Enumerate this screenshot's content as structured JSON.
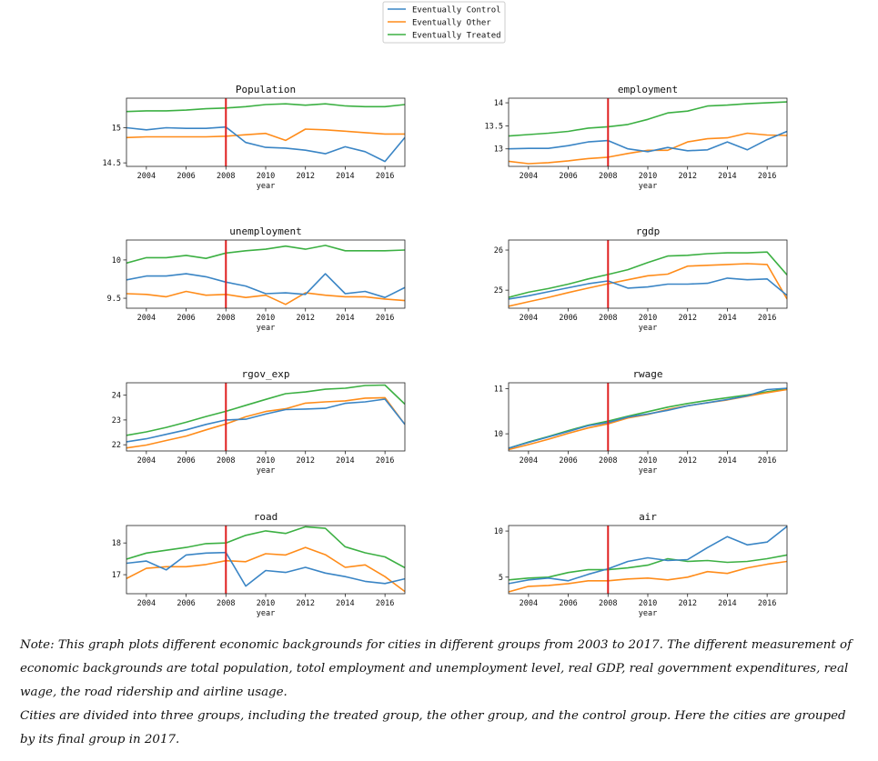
{
  "legend": {
    "items": [
      {
        "name": "Eventually Control",
        "color": "#3a85c5"
      },
      {
        "name": "Eventually Other",
        "color": "#ff8c1a"
      },
      {
        "name": "Eventually Treated",
        "color": "#3cb043"
      }
    ]
  },
  "chart_data": [
    {
      "type": "line",
      "title": "Population",
      "xlabel": "year",
      "ylabel": "",
      "x": [
        2003,
        2004,
        2005,
        2006,
        2007,
        2008,
        2009,
        2010,
        2011,
        2012,
        2013,
        2014,
        2015,
        2016,
        2017
      ],
      "xlim": [
        2003,
        2017
      ],
      "ylim": [
        14.45,
        15.42
      ],
      "yticks": [
        14.5,
        15.0
      ],
      "xticks": [
        2004,
        2006,
        2008,
        2010,
        2012,
        2014,
        2016
      ],
      "vline": 2008,
      "series": [
        {
          "name": "Eventually Control",
          "values": [
            15.0,
            14.97,
            15.0,
            14.99,
            14.99,
            15.01,
            14.79,
            14.72,
            14.71,
            14.68,
            14.63,
            14.73,
            14.66,
            14.52,
            14.86
          ]
        },
        {
          "name": "Eventually Other",
          "values": [
            14.86,
            14.87,
            14.87,
            14.87,
            14.87,
            14.88,
            14.9,
            14.92,
            14.82,
            14.98,
            14.97,
            14.95,
            14.93,
            14.91,
            14.91
          ]
        },
        {
          "name": "Eventually Treated",
          "values": [
            15.23,
            15.24,
            15.24,
            15.25,
            15.27,
            15.28,
            15.3,
            15.33,
            15.34,
            15.32,
            15.34,
            15.31,
            15.3,
            15.3,
            15.33
          ]
        }
      ]
    },
    {
      "type": "line",
      "title": "employment",
      "xlabel": "year",
      "ylabel": "",
      "x": [
        2003,
        2004,
        2005,
        2006,
        2007,
        2008,
        2009,
        2010,
        2011,
        2012,
        2013,
        2014,
        2015,
        2016,
        2017
      ],
      "xlim": [
        2003,
        2017
      ],
      "ylim": [
        12.62,
        14.1
      ],
      "yticks": [
        13.0,
        13.5,
        14.0
      ],
      "xticks": [
        2004,
        2006,
        2008,
        2010,
        2012,
        2014,
        2016
      ],
      "vline": 2008,
      "series": [
        {
          "name": "Eventually Control",
          "values": [
            13.0,
            13.01,
            13.01,
            13.07,
            13.15,
            13.18,
            13.0,
            12.94,
            13.03,
            12.96,
            12.98,
            13.15,
            12.98,
            13.2,
            13.38
          ]
        },
        {
          "name": "Eventually Other",
          "values": [
            12.73,
            12.68,
            12.7,
            12.74,
            12.79,
            12.82,
            12.9,
            12.97,
            12.97,
            13.15,
            13.22,
            13.24,
            13.34,
            13.3,
            13.29
          ]
        },
        {
          "name": "Eventually Treated",
          "values": [
            13.28,
            13.31,
            13.34,
            13.38,
            13.45,
            13.48,
            13.53,
            13.64,
            13.78,
            13.82,
            13.93,
            13.95,
            13.98,
            14.0,
            14.02
          ]
        }
      ]
    },
    {
      "type": "line",
      "title": "unemployment",
      "xlabel": "year",
      "ylabel": "",
      "x": [
        2003,
        2004,
        2005,
        2006,
        2007,
        2008,
        2009,
        2010,
        2011,
        2012,
        2013,
        2014,
        2015,
        2016,
        2017
      ],
      "xlim": [
        2003,
        2017
      ],
      "ylim": [
        9.37,
        10.26
      ],
      "yticks": [
        9.5,
        10.0
      ],
      "xticks": [
        2004,
        2006,
        2008,
        2010,
        2012,
        2014,
        2016
      ],
      "vline": 2008,
      "series": [
        {
          "name": "Eventually Control",
          "values": [
            9.74,
            9.79,
            9.79,
            9.82,
            9.78,
            9.71,
            9.66,
            9.56,
            9.57,
            9.55,
            9.82,
            9.56,
            9.59,
            9.51,
            9.64
          ]
        },
        {
          "name": "Eventually Other",
          "values": [
            9.56,
            9.55,
            9.52,
            9.59,
            9.54,
            9.55,
            9.51,
            9.54,
            9.42,
            9.57,
            9.54,
            9.52,
            9.52,
            9.49,
            9.47
          ]
        },
        {
          "name": "Eventually Treated",
          "values": [
            9.96,
            10.03,
            10.03,
            10.06,
            10.02,
            10.09,
            10.12,
            10.14,
            10.18,
            10.14,
            10.19,
            10.12,
            10.12,
            10.12,
            10.13
          ]
        }
      ]
    },
    {
      "type": "line",
      "title": "rgdp",
      "xlabel": "year",
      "ylabel": "",
      "x": [
        2003,
        2004,
        2005,
        2006,
        2007,
        2008,
        2009,
        2010,
        2011,
        2012,
        2013,
        2014,
        2015,
        2016,
        2017
      ],
      "xlim": [
        2003,
        2017
      ],
      "ylim": [
        24.55,
        26.25
      ],
      "yticks": [
        25,
        26
      ],
      "xticks": [
        2004,
        2006,
        2008,
        2010,
        2012,
        2014,
        2016
      ],
      "vline": 2008,
      "series": [
        {
          "name": "Eventually Control",
          "values": [
            24.78,
            24.86,
            24.96,
            25.06,
            25.16,
            25.23,
            25.05,
            25.08,
            25.15,
            25.15,
            25.17,
            25.3,
            25.26,
            25.28,
            24.87
          ]
        },
        {
          "name": "Eventually Other",
          "values": [
            24.6,
            24.71,
            24.82,
            24.94,
            25.05,
            25.16,
            25.26,
            25.36,
            25.4,
            25.6,
            25.62,
            25.64,
            25.66,
            25.64,
            24.78
          ]
        },
        {
          "name": "Eventually Treated",
          "values": [
            24.82,
            24.95,
            25.04,
            25.15,
            25.28,
            25.39,
            25.51,
            25.69,
            25.85,
            25.87,
            25.91,
            25.93,
            25.93,
            25.95,
            25.38
          ]
        }
      ]
    },
    {
      "type": "line",
      "title": "rgov_exp",
      "xlabel": "year",
      "ylabel": "",
      "x": [
        2003,
        2004,
        2005,
        2006,
        2007,
        2008,
        2009,
        2010,
        2011,
        2012,
        2013,
        2014,
        2015,
        2016,
        2017
      ],
      "xlim": [
        2003,
        2017
      ],
      "ylim": [
        21.75,
        24.5
      ],
      "yticks": [
        22,
        23,
        24
      ],
      "xticks": [
        2004,
        2006,
        2008,
        2010,
        2012,
        2014,
        2016
      ],
      "vline": 2008,
      "series": [
        {
          "name": "Eventually Control",
          "values": [
            22.12,
            22.24,
            22.42,
            22.6,
            22.82,
            23.0,
            23.03,
            23.24,
            23.42,
            23.44,
            23.47,
            23.67,
            23.73,
            23.84,
            22.82
          ]
        },
        {
          "name": "Eventually Other",
          "values": [
            21.87,
            21.99,
            22.17,
            22.35,
            22.6,
            22.84,
            23.13,
            23.34,
            23.45,
            23.68,
            23.73,
            23.77,
            23.88,
            23.9,
            22.82
          ]
        },
        {
          "name": "Eventually Treated",
          "values": [
            22.38,
            22.52,
            22.7,
            22.91,
            23.14,
            23.35,
            23.59,
            23.83,
            24.06,
            24.13,
            24.24,
            24.28,
            24.39,
            24.41,
            23.64
          ]
        }
      ]
    },
    {
      "type": "line",
      "title": "rwage",
      "xlabel": "year",
      "ylabel": "",
      "x": [
        2003,
        2004,
        2005,
        2006,
        2007,
        2008,
        2009,
        2010,
        2011,
        2012,
        2013,
        2014,
        2015,
        2016,
        2017
      ],
      "xlim": [
        2003,
        2017
      ],
      "ylim": [
        9.62,
        11.13
      ],
      "yticks": [
        10,
        11
      ],
      "xticks": [
        2004,
        2006,
        2008,
        2010,
        2012,
        2014,
        2016
      ],
      "vline": 2008,
      "series": [
        {
          "name": "Eventually Control",
          "values": [
            9.68,
            9.81,
            9.93,
            10.05,
            10.18,
            10.25,
            10.37,
            10.44,
            10.52,
            10.62,
            10.69,
            10.76,
            10.84,
            10.98,
            11.01
          ]
        },
        {
          "name": "Eventually Other",
          "values": [
            9.65,
            9.76,
            9.88,
            10.01,
            10.13,
            10.22,
            10.35,
            10.43,
            10.54,
            10.62,
            10.69,
            10.75,
            10.83,
            10.91,
            10.98
          ]
        },
        {
          "name": "Eventually Treated",
          "values": [
            9.68,
            9.82,
            9.94,
            10.07,
            10.19,
            10.28,
            10.39,
            10.49,
            10.59,
            10.67,
            10.74,
            10.8,
            10.86,
            10.93,
            11.0
          ]
        }
      ]
    },
    {
      "type": "line",
      "title": "road",
      "xlabel": "year",
      "ylabel": "",
      "x": [
        2003,
        2004,
        2005,
        2006,
        2007,
        2008,
        2009,
        2010,
        2011,
        2012,
        2013,
        2014,
        2015,
        2016,
        2017
      ],
      "xlim": [
        2003,
        2017
      ],
      "ylim": [
        16.4,
        18.55
      ],
      "yticks": [
        17,
        18
      ],
      "xticks": [
        2004,
        2006,
        2008,
        2010,
        2012,
        2014,
        2016
      ],
      "vline": 2008,
      "series": [
        {
          "name": "Eventually Control",
          "values": [
            17.36,
            17.43,
            17.15,
            17.62,
            17.68,
            17.7,
            16.64,
            17.13,
            17.07,
            17.23,
            17.05,
            16.94,
            16.79,
            16.72,
            16.87
          ]
        },
        {
          "name": "Eventually Other",
          "values": [
            16.88,
            17.2,
            17.25,
            17.25,
            17.32,
            17.44,
            17.41,
            17.66,
            17.62,
            17.86,
            17.63,
            17.23,
            17.31,
            16.94,
            16.47
          ]
        },
        {
          "name": "Eventually Treated",
          "values": [
            17.49,
            17.68,
            17.77,
            17.86,
            17.98,
            18.0,
            18.24,
            18.38,
            18.3,
            18.51,
            18.46,
            17.88,
            17.69,
            17.56,
            17.22
          ]
        }
      ]
    },
    {
      "type": "line",
      "title": "air",
      "xlabel": "year",
      "ylabel": "",
      "x": [
        2003,
        2004,
        2005,
        2006,
        2007,
        2008,
        2009,
        2010,
        2011,
        2012,
        2013,
        2014,
        2015,
        2016,
        2017
      ],
      "xlim": [
        2003,
        2017
      ],
      "ylim": [
        3.2,
        10.6
      ],
      "yticks": [
        5,
        10
      ],
      "xticks": [
        2004,
        2006,
        2008,
        2010,
        2012,
        2014,
        2016
      ],
      "vline": 2008,
      "series": [
        {
          "name": "Eventually Control",
          "values": [
            4.3,
            4.7,
            4.9,
            4.6,
            5.3,
            5.9,
            6.7,
            7.1,
            6.8,
            6.9,
            8.2,
            9.4,
            8.5,
            8.8,
            10.5
          ]
        },
        {
          "name": "Eventually Other",
          "values": [
            3.4,
            4.0,
            4.1,
            4.3,
            4.6,
            4.6,
            4.8,
            4.9,
            4.7,
            5.0,
            5.6,
            5.4,
            6.0,
            6.4,
            6.7
          ]
        },
        {
          "name": "Eventually Treated",
          "values": [
            4.7,
            4.9,
            5.0,
            5.5,
            5.8,
            5.8,
            6.0,
            6.3,
            7.0,
            6.7,
            6.8,
            6.6,
            6.7,
            7.0,
            7.4
          ]
        }
      ]
    }
  ],
  "note": {
    "paragraph1": "Note: This graph plots different economic backgrounds for cities in different groups from 2003 to 2017. The different measurement of economic backgrounds are total population, totol employment and unemployment level, real GDP, real government expenditures, real wage, the road ridership and airline usage.",
    "paragraph2": "Cities are divided into three groups, including the treated group, the other group, and the control group. Here the cities are grouped by its final group in 2017."
  }
}
